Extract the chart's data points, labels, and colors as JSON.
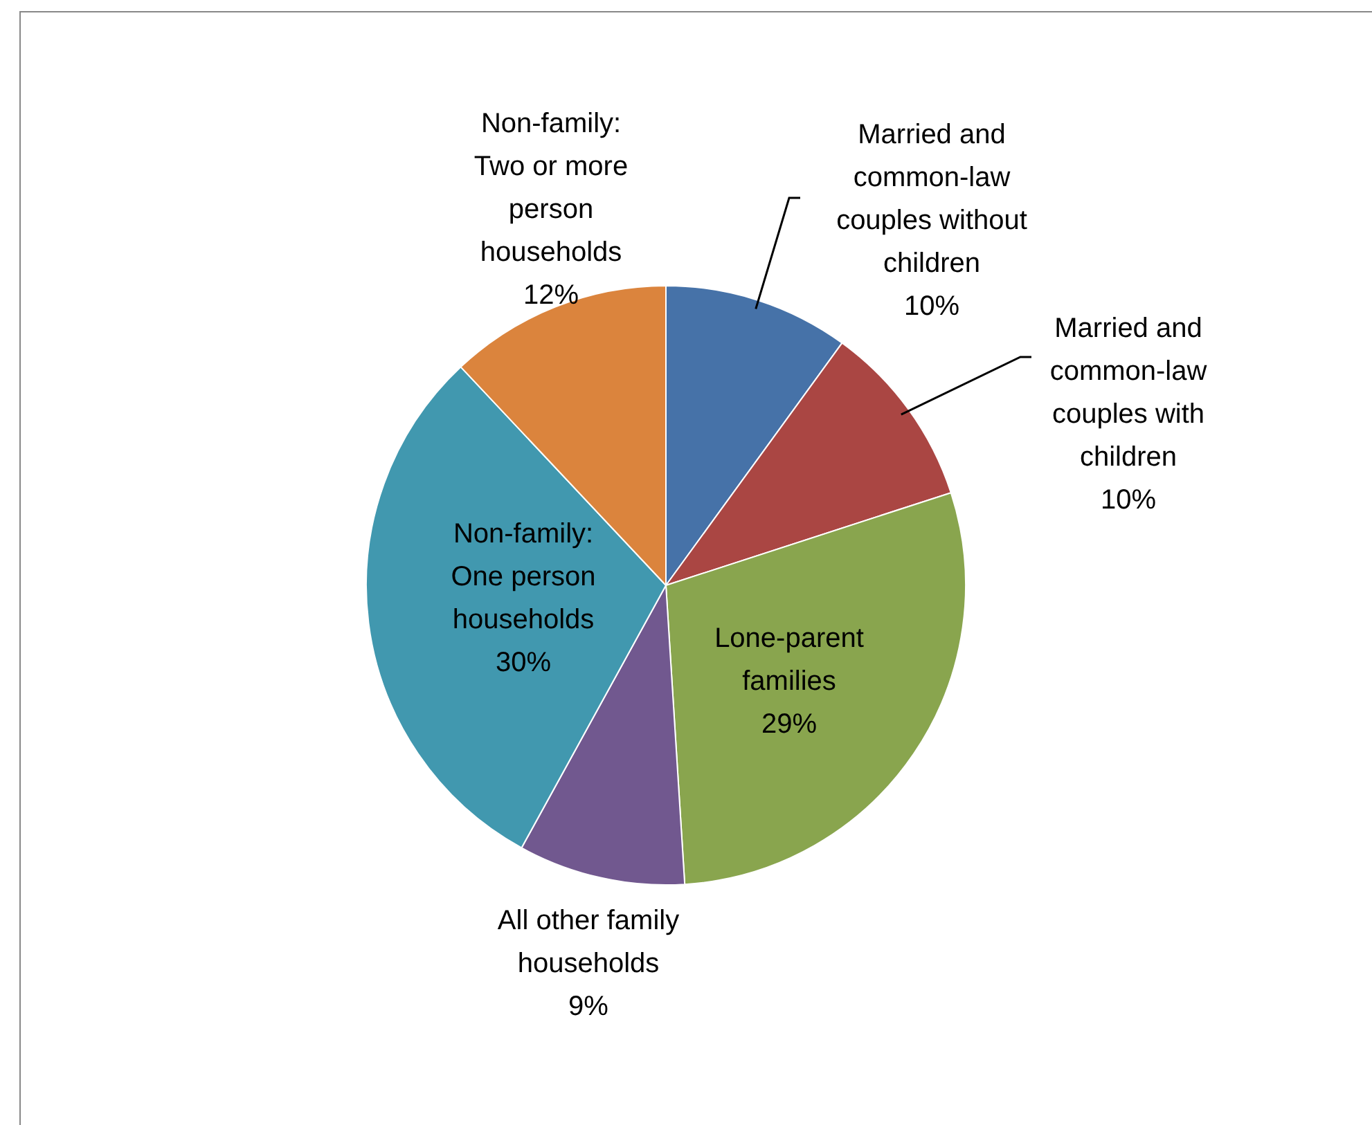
{
  "chart_data": {
    "type": "pie",
    "categories": [
      "Married and common-law couples without children",
      "Married and common-law couples with children",
      "Lone-parent families",
      "All other family households",
      "Non-family: One person households",
      "Non-family: Two or more person households"
    ],
    "values": [
      10,
      10,
      29,
      9,
      30,
      12
    ],
    "colors": [
      "#4672a8",
      "#aa4643",
      "#89a54e",
      "#71588f",
      "#4198af",
      "#db843d"
    ],
    "value_labels": [
      "10%",
      "10%",
      "29%",
      "9%",
      "30%",
      "12%"
    ],
    "legend": false
  }
}
